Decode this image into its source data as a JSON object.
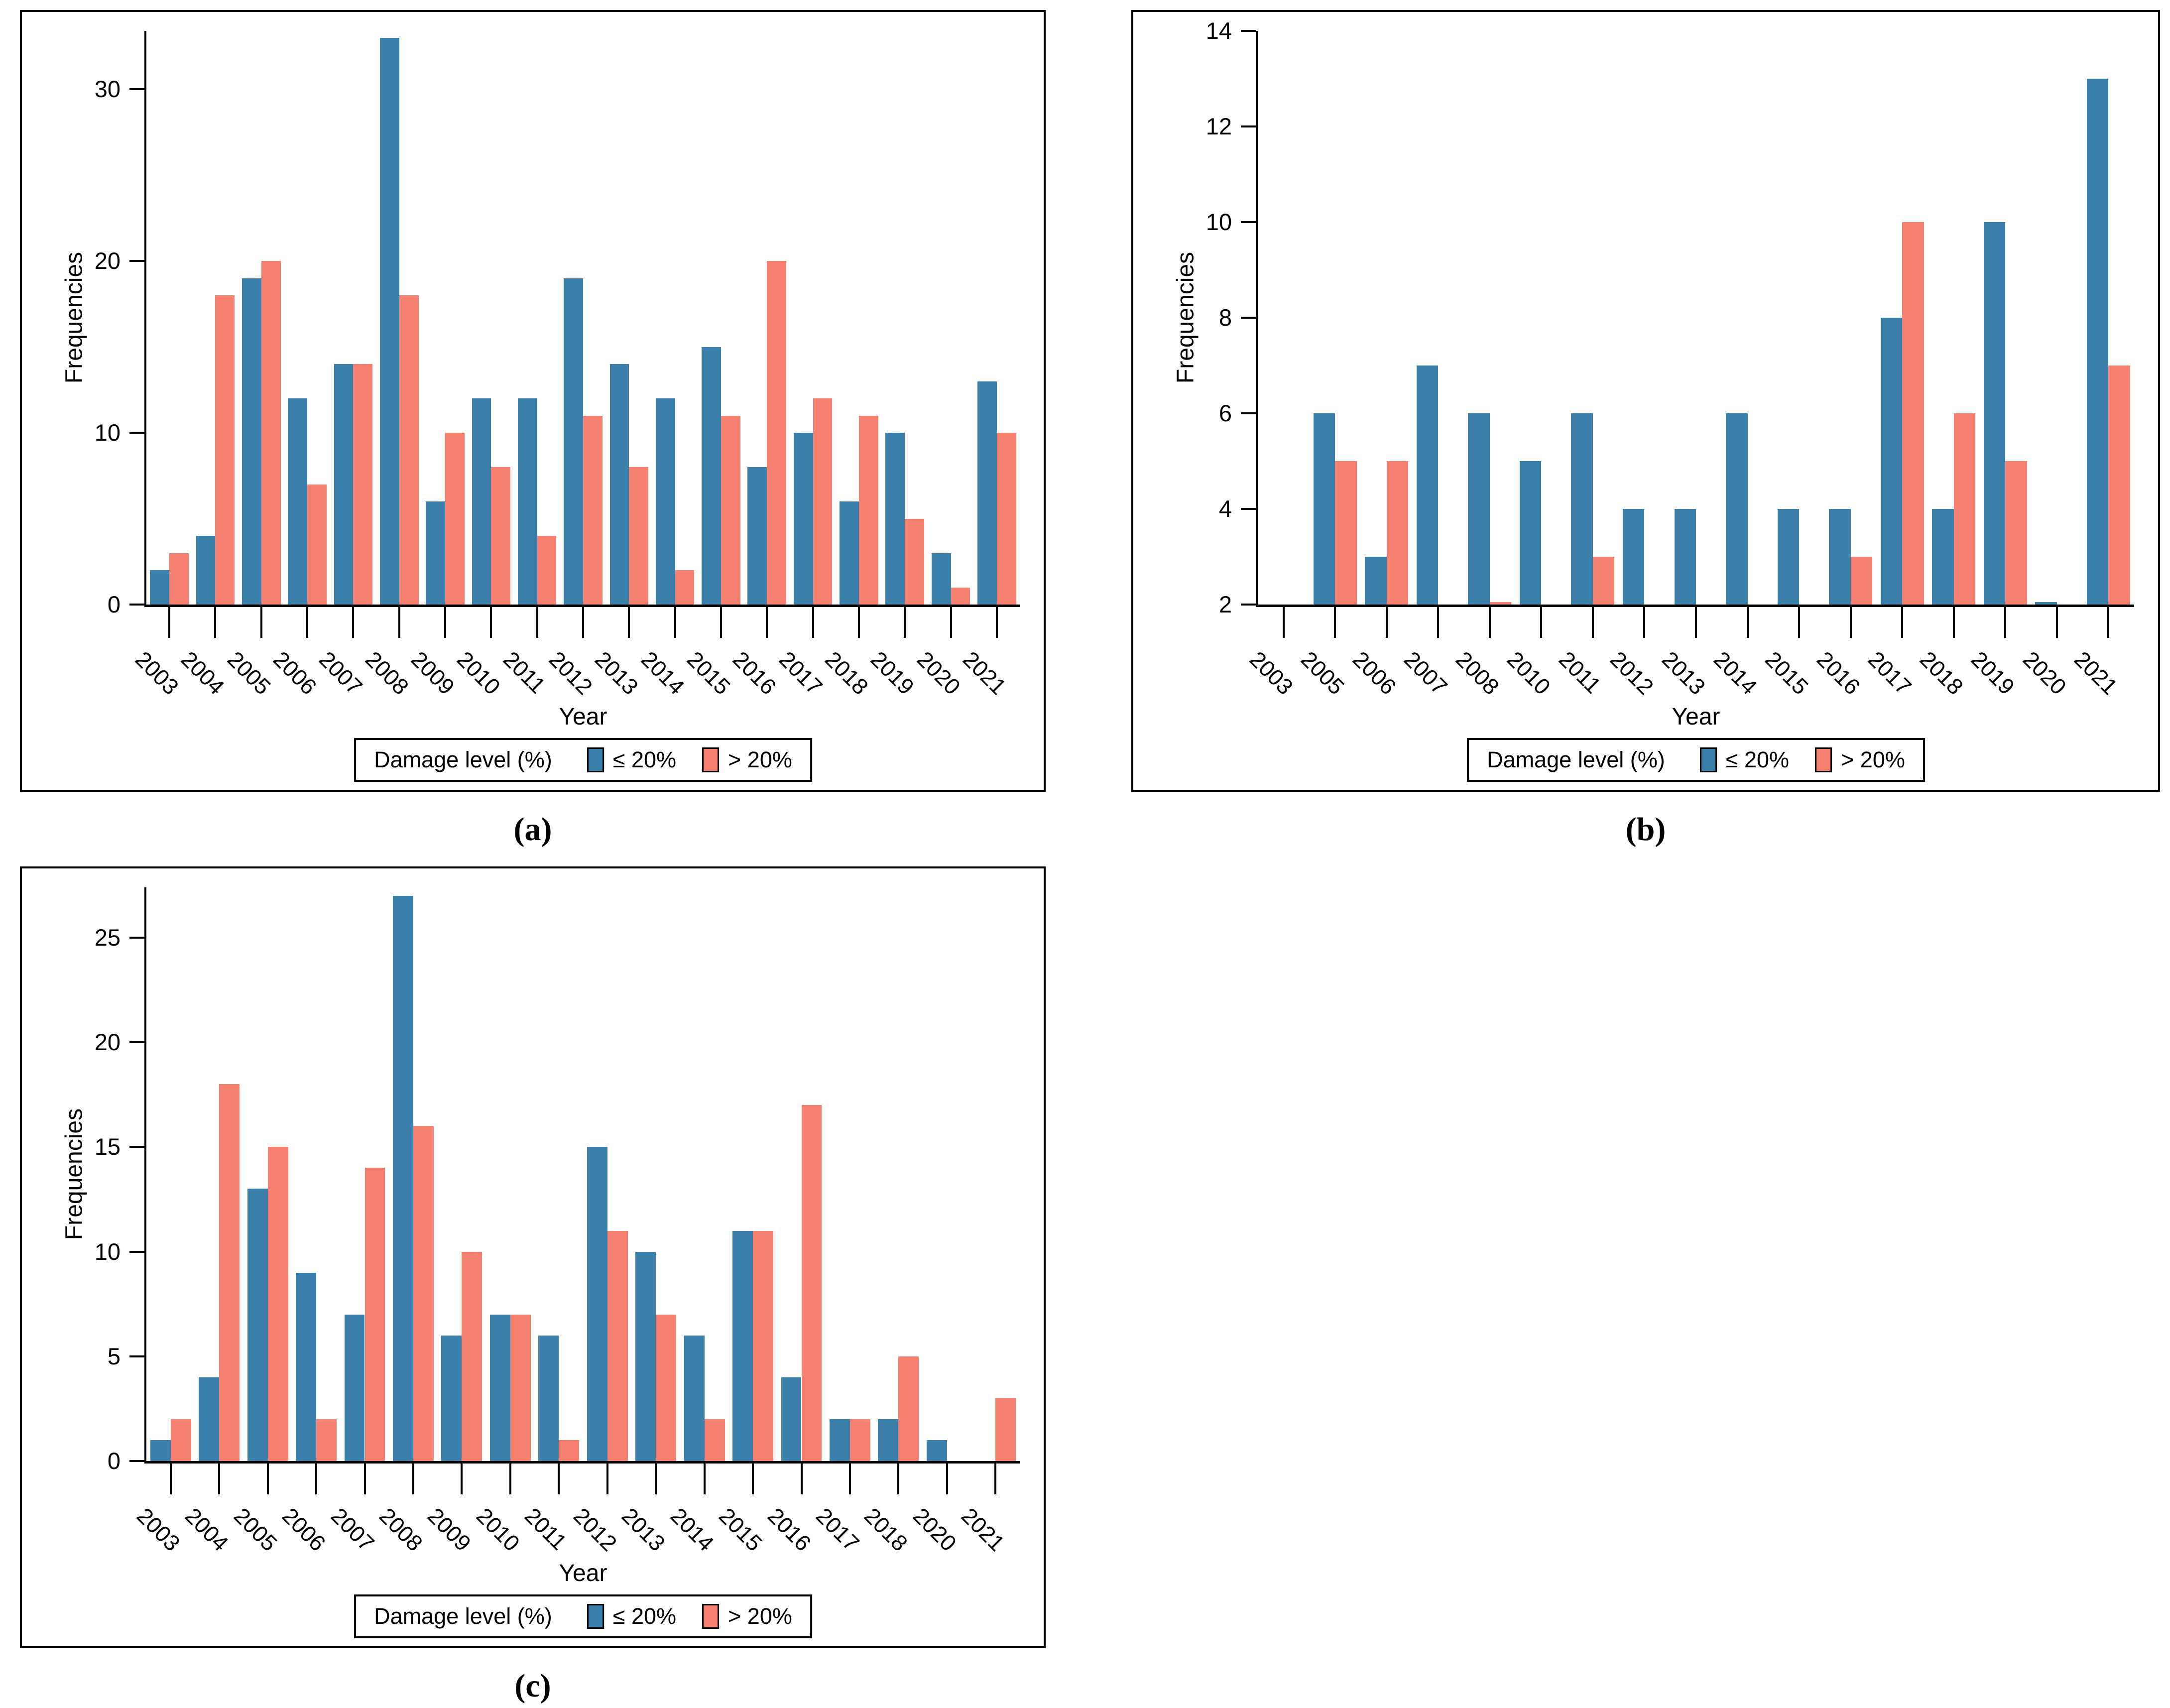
{
  "figure": {
    "background": "#ffffff",
    "panel_border_color": "#000000",
    "text_color": "#000000",
    "colors": {
      "le20": "#3B80AB",
      "gt20": "#F5806F",
      "swatch_border": "#000000"
    },
    "legend": {
      "title": "Damage level (%)",
      "le20_label": "≤ 20%",
      "gt20_label": "> 20%"
    },
    "ylabel": "Frequencies",
    "xlabel": "Year"
  },
  "chart_data": [
    {
      "id": "a",
      "caption": "(a)",
      "type": "bar",
      "title": "",
      "ylabel": "Frequencies",
      "xlabel": "Year",
      "legend_position": "bottom",
      "grid": false,
      "ymin": 0,
      "ymax": 33.4,
      "yticks": [
        0,
        10,
        20,
        30
      ],
      "categories": [
        "2003",
        "2004",
        "2005",
        "2006",
        "2007",
        "2008",
        "2009",
        "2010",
        "2011",
        "2012",
        "2013",
        "2014",
        "2015",
        "2016",
        "2017",
        "2018",
        "2019",
        "2020",
        "2021"
      ],
      "series": [
        {
          "name": "≤ 20%",
          "color_key": "le20",
          "values": [
            2,
            4,
            19,
            12,
            14,
            33,
            6,
            12,
            12,
            19,
            14,
            12,
            15,
            8,
            10,
            6,
            10,
            3,
            13
          ]
        },
        {
          "name": "> 20%",
          "color_key": "gt20",
          "values": [
            3,
            18,
            20,
            7,
            14,
            18,
            10,
            8,
            4,
            11,
            8,
            2,
            11,
            20,
            12,
            11,
            5,
            1,
            10
          ]
        }
      ]
    },
    {
      "id": "b",
      "caption": "(b)",
      "type": "bar",
      "title": "",
      "ylabel": "Frequencies",
      "xlabel": "Year",
      "legend_position": "bottom",
      "grid": false,
      "ymin": 2,
      "ymax": 14,
      "yticks": [
        2,
        4,
        6,
        8,
        10,
        12,
        14
      ],
      "categories": [
        "2003",
        "2005",
        "2006",
        "2007",
        "2008",
        "2010",
        "2011",
        "2012",
        "2013",
        "2014",
        "2015",
        "2016",
        "2017",
        "2018",
        "2019",
        "2020",
        "2021"
      ],
      "series": [
        {
          "name": "≤ 20%",
          "color_key": "le20",
          "values": [
            null,
            6,
            3,
            7,
            6,
            5,
            6,
            4,
            4,
            6,
            4,
            4,
            8,
            4,
            10,
            2,
            13
          ]
        },
        {
          "name": "> 20%",
          "color_key": "gt20",
          "values": [
            null,
            5,
            5,
            null,
            2,
            null,
            3,
            null,
            null,
            null,
            null,
            3,
            10,
            6,
            5,
            null,
            7
          ]
        }
      ]
    },
    {
      "id": "c",
      "caption": "(c)",
      "type": "bar",
      "title": "",
      "ylabel": "Frequencies",
      "xlabel": "Year",
      "legend_position": "bottom",
      "grid": false,
      "ymin": 0,
      "ymax": 27.4,
      "yticks": [
        0,
        5,
        10,
        15,
        20,
        25
      ],
      "categories": [
        "2003",
        "2004",
        "2005",
        "2006",
        "2007",
        "2008",
        "2009",
        "2010",
        "2011",
        "2012",
        "2013",
        "2014",
        "2015",
        "2016",
        "2017",
        "2018",
        "2020",
        "2021"
      ],
      "series": [
        {
          "name": "≤ 20%",
          "color_key": "le20",
          "values": [
            1,
            4,
            13,
            9,
            7,
            27,
            6,
            7,
            6,
            15,
            10,
            6,
            11,
            4,
            2,
            2,
            1,
            null
          ]
        },
        {
          "name": "> 20%",
          "color_key": "gt20",
          "values": [
            2,
            18,
            15,
            2,
            14,
            16,
            10,
            7,
            1,
            11,
            7,
            2,
            11,
            17,
            2,
            5,
            null,
            3
          ]
        }
      ]
    }
  ]
}
